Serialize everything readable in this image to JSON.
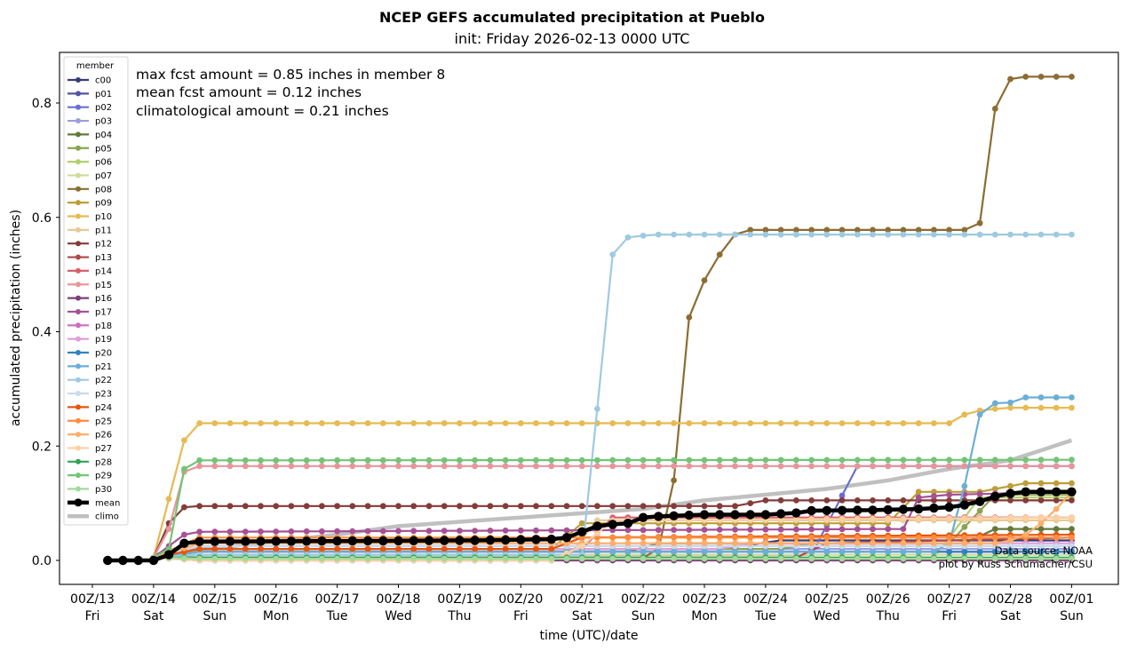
{
  "chart_data": {
    "type": "line",
    "title": "NCEP GEFS accumulated precipitation at Pueblo",
    "subtitle": "init: Friday 2026-02-13 0000 UTC",
    "xlabel": "time (UTC)/date",
    "ylabel": "accumulated precipitation (inches)",
    "ylim": [
      -0.04,
      0.885
    ],
    "yticks": [
      "0.0",
      "0.2",
      "0.4",
      "0.6",
      "0.8"
    ],
    "ytick_values": [
      0.0,
      0.2,
      0.4,
      0.6,
      0.8
    ],
    "xticks": [
      {
        "hour": 0,
        "line1": "00Z/13",
        "line2": "Fri"
      },
      {
        "hour": 24,
        "line1": "00Z/14",
        "line2": "Sat"
      },
      {
        "hour": 48,
        "line1": "00Z/15",
        "line2": "Sun"
      },
      {
        "hour": 72,
        "line1": "00Z/16",
        "line2": "Mon"
      },
      {
        "hour": 96,
        "line1": "00Z/17",
        "line2": "Tue"
      },
      {
        "hour": 120,
        "line1": "00Z/18",
        "line2": "Wed"
      },
      {
        "hour": 144,
        "line1": "00Z/19",
        "line2": "Thu"
      },
      {
        "hour": 168,
        "line1": "00Z/20",
        "line2": "Fri"
      },
      {
        "hour": 192,
        "line1": "00Z/21",
        "line2": "Sat"
      },
      {
        "hour": 216,
        "line1": "00Z/22",
        "line2": "Sun"
      },
      {
        "hour": 240,
        "line1": "00Z/23",
        "line2": "Mon"
      },
      {
        "hour": 264,
        "line1": "00Z/24",
        "line2": "Tue"
      },
      {
        "hour": 288,
        "line1": "00Z/25",
        "line2": "Wed"
      },
      {
        "hour": 312,
        "line1": "00Z/26",
        "line2": "Thu"
      },
      {
        "hour": 336,
        "line1": "00Z/27",
        "line2": "Fri"
      },
      {
        "hour": 360,
        "line1": "00Z/28",
        "line2": "Sat"
      },
      {
        "hour": 384,
        "line1": "00Z/01",
        "line2": "Sun"
      }
    ],
    "xlim_hours": [
      -27,
      398
    ],
    "x_start_hour": 6,
    "x_step_hours": 6,
    "legend_title": "member",
    "legend_position": "top-left",
    "annotations": [
      "max fcst amount = 0.85 inches in member 8",
      "mean fcst amount = 0.12 inches",
      "climatological amount = 0.21 inches"
    ],
    "credits": [
      "Data source: NOAA",
      "plot by Russ Schumacher/CSU"
    ],
    "series": [
      {
        "name": "c00",
        "color": "#393b79",
        "start": 3,
        "steps": [
          [
            3,
            0.005
          ],
          [
            6,
            0.02
          ],
          [
            40,
            0.02
          ],
          [
            44,
            0.035
          ],
          [
            63,
            0.035
          ]
        ]
      },
      {
        "name": "p01",
        "color": "#5254a3",
        "start": 3,
        "steps": [
          [
            3,
            0.005
          ],
          [
            6,
            0.015
          ],
          [
            63,
            0.015
          ]
        ]
      },
      {
        "name": "p02",
        "color": "#6b6ecf",
        "start": 3,
        "steps": [
          [
            3,
            0.005
          ],
          [
            6,
            0.01
          ],
          [
            46,
            0.01
          ],
          [
            49,
            0.165
          ],
          [
            63,
            0.165
          ]
        ]
      },
      {
        "name": "p03",
        "color": "#9c9ede",
        "start": 3,
        "steps": [
          [
            3,
            0.005
          ],
          [
            6,
            0.02
          ],
          [
            63,
            0.02
          ]
        ]
      },
      {
        "name": "p04",
        "color": "#637939",
        "start": 3,
        "steps": [
          [
            3,
            0.005
          ],
          [
            6,
            0.015
          ],
          [
            34,
            0.015
          ],
          [
            36,
            0.03
          ],
          [
            56,
            0.03
          ],
          [
            58,
            0.055
          ],
          [
            63,
            0.055
          ]
        ]
      },
      {
        "name": "p05",
        "color": "#8ca252",
        "start": 3,
        "steps": [
          [
            3,
            0.005
          ],
          [
            6,
            0.02
          ],
          [
            44,
            0.02
          ],
          [
            46,
            0.03
          ],
          [
            55,
            0.03
          ],
          [
            58,
            0.115
          ],
          [
            63,
            0.115
          ]
        ]
      },
      {
        "name": "p06",
        "color": "#b5cf6b",
        "start": 3,
        "steps": [
          [
            3,
            0.005
          ],
          [
            6,
            0.005
          ],
          [
            54,
            0.005
          ],
          [
            57,
            0.11
          ],
          [
            63,
            0.11
          ]
        ]
      },
      {
        "name": "p07",
        "color": "#cedb9c",
        "start": 3,
        "steps": [
          [
            3,
            0.005
          ],
          [
            6,
            0.01
          ],
          [
            63,
            0.01
          ]
        ]
      },
      {
        "name": "p08",
        "color": "#8c6d31",
        "start": 3,
        "steps": [
          [
            3,
            0.005
          ],
          [
            6,
            0.005
          ],
          [
            35,
            0.005
          ],
          [
            36,
            0.02
          ],
          [
            37,
            0.14
          ],
          [
            38,
            0.425
          ],
          [
            39,
            0.49
          ],
          [
            40,
            0.535
          ],
          [
            41,
            0.57
          ],
          [
            42,
            0.578
          ],
          [
            56,
            0.578
          ],
          [
            57,
            0.59
          ],
          [
            58,
            0.79
          ],
          [
            59,
            0.842
          ],
          [
            60,
            0.846
          ],
          [
            63,
            0.846
          ]
        ]
      },
      {
        "name": "p09",
        "color": "#bd9e39",
        "start": 3,
        "steps": [
          [
            3,
            0.005
          ],
          [
            6,
            0.02
          ],
          [
            29,
            0.02
          ],
          [
            31,
            0.065
          ],
          [
            51,
            0.065
          ],
          [
            53,
            0.12
          ],
          [
            57,
            0.12
          ],
          [
            59,
            0.13
          ],
          [
            60,
            0.135
          ],
          [
            63,
            0.135
          ]
        ]
      },
      {
        "name": "p10",
        "color": "#e7ba52",
        "start": 3,
        "steps": [
          [
            3,
            0.005
          ],
          [
            5,
            0.21
          ],
          [
            6,
            0.24
          ],
          [
            55,
            0.24
          ],
          [
            56,
            0.255
          ],
          [
            57,
            0.262
          ],
          [
            58,
            0.265
          ],
          [
            59,
            0.267
          ],
          [
            63,
            0.267
          ]
        ]
      },
      {
        "name": "p11",
        "color": "#e7cb94",
        "start": 3,
        "steps": [
          [
            3,
            0.005
          ],
          [
            6,
            0.005
          ],
          [
            30,
            0.005
          ],
          [
            32,
            0.07
          ],
          [
            63,
            0.07
          ]
        ]
      },
      {
        "name": "p12",
        "color": "#843c39",
        "start": 3,
        "steps": [
          [
            3,
            0.005
          ],
          [
            4,
            0.065
          ],
          [
            5,
            0.093
          ],
          [
            6,
            0.095
          ],
          [
            41,
            0.095
          ],
          [
            43,
            0.105
          ],
          [
            63,
            0.105
          ]
        ]
      },
      {
        "name": "p13",
        "color": "#ad494a",
        "start": 3,
        "steps": [
          [
            3,
            0.005
          ],
          [
            6,
            0.005
          ],
          [
            45,
            0.005
          ],
          [
            47,
            0.03
          ],
          [
            63,
            0.04
          ]
        ]
      },
      {
        "name": "p14",
        "color": "#d6616b",
        "start": 3,
        "steps": [
          [
            3,
            0.005
          ],
          [
            6,
            0.02
          ],
          [
            31,
            0.02
          ],
          [
            33,
            0.075
          ],
          [
            63,
            0.075
          ]
        ]
      },
      {
        "name": "p15",
        "color": "#e7969c",
        "start": 3,
        "steps": [
          [
            3,
            0.005
          ],
          [
            4,
            0.055
          ],
          [
            5,
            0.155
          ],
          [
            6,
            0.165
          ],
          [
            63,
            0.165
          ]
        ]
      },
      {
        "name": "p16",
        "color": "#7b4173",
        "start": 3,
        "steps": [
          [
            3,
            0.005
          ],
          [
            6,
            0.0
          ],
          [
            63,
            0.0
          ]
        ]
      },
      {
        "name": "p17",
        "color": "#a55194",
        "start": 3,
        "steps": [
          [
            3,
            0.005
          ],
          [
            5,
            0.045
          ],
          [
            6,
            0.05
          ],
          [
            52,
            0.055
          ],
          [
            53,
            0.11
          ],
          [
            55,
            0.115
          ],
          [
            63,
            0.12
          ]
        ]
      },
      {
        "name": "p18",
        "color": "#ce6dbd",
        "start": 3,
        "steps": [
          [
            3,
            0.005
          ],
          [
            6,
            0.025
          ],
          [
            63,
            0.025
          ]
        ]
      },
      {
        "name": "p19",
        "color": "#de9ed6",
        "start": 3,
        "steps": [
          [
            3,
            0.005
          ],
          [
            6,
            0.02
          ],
          [
            40,
            0.02
          ],
          [
            42,
            0.03
          ],
          [
            63,
            0.03
          ]
        ]
      },
      {
        "name": "p20",
        "color": "#3182bd",
        "start": 3,
        "steps": [
          [
            3,
            0.005
          ],
          [
            6,
            0.015
          ],
          [
            63,
            0.015
          ]
        ]
      },
      {
        "name": "p21",
        "color": "#6baed6",
        "start": 3,
        "steps": [
          [
            3,
            0.005
          ],
          [
            6,
            0.015
          ],
          [
            54,
            0.015
          ],
          [
            55,
            0.03
          ],
          [
            56,
            0.13
          ],
          [
            57,
            0.255
          ],
          [
            58,
            0.275
          ],
          [
            59,
            0.276
          ],
          [
            60,
            0.285
          ],
          [
            63,
            0.285
          ]
        ]
      },
      {
        "name": "p22",
        "color": "#9ecae1",
        "start": 3,
        "steps": [
          [
            3,
            0.005
          ],
          [
            6,
            0.01
          ],
          [
            31,
            0.01
          ],
          [
            32,
            0.265
          ],
          [
            33,
            0.535
          ],
          [
            34,
            0.565
          ],
          [
            35,
            0.568
          ],
          [
            36,
            0.57
          ],
          [
            63,
            0.57
          ]
        ]
      },
      {
        "name": "p23",
        "color": "#c6dbef",
        "start": 3,
        "steps": [
          [
            3,
            0.005
          ],
          [
            6,
            0.025
          ],
          [
            63,
            0.025
          ]
        ]
      },
      {
        "name": "p24",
        "color": "#e6550d",
        "start": 3,
        "steps": [
          [
            3,
            0.005
          ],
          [
            6,
            0.02
          ],
          [
            29,
            0.02
          ],
          [
            31,
            0.04
          ],
          [
            63,
            0.045
          ]
        ]
      },
      {
        "name": "p25",
        "color": "#fd8d3c",
        "start": 3,
        "steps": [
          [
            3,
            0.005
          ],
          [
            6,
            0.04
          ],
          [
            63,
            0.04
          ]
        ]
      },
      {
        "name": "p26",
        "color": "#fdae6b",
        "start": 3,
        "steps": [
          [
            3,
            0.005
          ],
          [
            6,
            0.03
          ],
          [
            58,
            0.03
          ],
          [
            59,
            0.035
          ],
          [
            60,
            0.045
          ],
          [
            61,
            0.065
          ],
          [
            62,
            0.09
          ],
          [
            63,
            0.12
          ]
        ]
      },
      {
        "name": "p27",
        "color": "#fdd0a2",
        "start": 3,
        "steps": [
          [
            3,
            0.005
          ],
          [
            6,
            0.0
          ],
          [
            29,
            0.0
          ],
          [
            31,
            0.025
          ],
          [
            33,
            0.07
          ],
          [
            63,
            0.075
          ]
        ]
      },
      {
        "name": "p28",
        "color": "#31a354",
        "start": 3,
        "steps": [
          [
            3,
            0.005
          ],
          [
            6,
            0.005
          ],
          [
            63,
            0.005
          ]
        ]
      },
      {
        "name": "p29",
        "color": "#74c476",
        "start": 3,
        "steps": [
          [
            3,
            0.005
          ],
          [
            4,
            0.02
          ],
          [
            5,
            0.16
          ],
          [
            6,
            0.175
          ],
          [
            63,
            0.176
          ]
        ]
      },
      {
        "name": "p30",
        "color": "#a1d99b",
        "start": 3,
        "steps": [
          [
            3,
            0.005
          ],
          [
            6,
            0.003
          ],
          [
            63,
            0.003
          ]
        ]
      }
    ],
    "mean": {
      "name": "mean",
      "color": "#000000",
      "start": 0,
      "steps": [
        [
          0,
          0.0
        ],
        [
          3,
          0.0
        ],
        [
          4,
          0.01
        ],
        [
          5,
          0.03
        ],
        [
          6,
          0.033
        ],
        [
          16,
          0.034
        ],
        [
          24,
          0.035
        ],
        [
          29,
          0.037
        ],
        [
          30,
          0.04
        ],
        [
          31,
          0.05
        ],
        [
          32,
          0.06
        ],
        [
          33,
          0.063
        ],
        [
          34,
          0.065
        ],
        [
          35,
          0.075
        ],
        [
          36,
          0.077
        ],
        [
          37,
          0.078
        ],
        [
          38,
          0.079
        ],
        [
          39,
          0.08
        ],
        [
          43,
          0.08
        ],
        [
          45,
          0.083
        ],
        [
          46,
          0.087
        ],
        [
          50,
          0.088
        ],
        [
          53,
          0.09
        ],
        [
          55,
          0.093
        ],
        [
          56,
          0.097
        ],
        [
          57,
          0.103
        ],
        [
          58,
          0.112
        ],
        [
          59,
          0.117
        ],
        [
          60,
          0.12
        ],
        [
          63,
          0.12
        ]
      ]
    },
    "climo": {
      "name": "climo",
      "color": "#c0c0c0",
      "start": 3,
      "steps": [
        [
          3,
          0.01
        ],
        [
          15,
          0.045
        ],
        [
          19,
          0.06
        ],
        [
          27,
          0.075
        ],
        [
          35,
          0.09
        ],
        [
          39,
          0.105
        ],
        [
          43,
          0.115
        ],
        [
          47,
          0.125
        ],
        [
          51,
          0.14
        ],
        [
          55,
          0.16
        ],
        [
          59,
          0.175
        ],
        [
          63,
          0.21
        ]
      ]
    }
  }
}
